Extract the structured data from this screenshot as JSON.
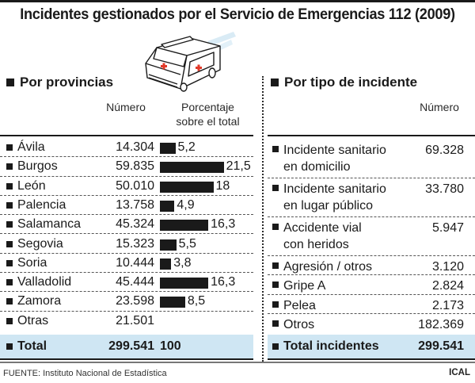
{
  "title": "Incidentes gestionados por el Servicio de Emergencias 112 (2009)",
  "illustration": "ambulance-icon",
  "left": {
    "heading": "Por provincias",
    "col_number": "Número",
    "col_percent_line1": "Porcentaje",
    "col_percent_line2": "sobre el total",
    "rows": [
      {
        "name": "Ávila",
        "number": "14.304",
        "pct": 5.2,
        "pct_label": "5,2"
      },
      {
        "name": "Burgos",
        "number": "59.835",
        "pct": 21.5,
        "pct_label": "21,5"
      },
      {
        "name": "León",
        "number": "50.010",
        "pct": 18,
        "pct_label": "18"
      },
      {
        "name": "Palencia",
        "number": "13.758",
        "pct": 4.9,
        "pct_label": "4,9"
      },
      {
        "name": "Salamanca",
        "number": "45.324",
        "pct": 16.3,
        "pct_label": "16,3"
      },
      {
        "name": "Segovia",
        "number": "15.323",
        "pct": 5.5,
        "pct_label": "5,5"
      },
      {
        "name": "Soria",
        "number": "10.444",
        "pct": 3.8,
        "pct_label": "3,8"
      },
      {
        "name": "Valladolid",
        "number": "45.444",
        "pct": 16.3,
        "pct_label": "16,3"
      },
      {
        "name": "Zamora",
        "number": "23.598",
        "pct": 8.5,
        "pct_label": "8,5"
      },
      {
        "name": "Otras",
        "number": "21.501",
        "pct": null,
        "pct_label": ""
      }
    ],
    "total": {
      "name": "Total",
      "number": "299.541",
      "pct_label": "100"
    }
  },
  "right": {
    "heading": "Por tipo de incidente",
    "col_number": "Número",
    "rows": [
      {
        "line1": "Incidente sanitario",
        "line2": "en domicilio",
        "number": "69.328"
      },
      {
        "line1": "Incidente sanitario",
        "line2": "en lugar público",
        "number": "33.780"
      },
      {
        "line1": "Accidente vial",
        "line2": "con heridos",
        "number": "5.947"
      },
      {
        "line1": "Agresión / otros",
        "line2": "",
        "number": "3.120"
      },
      {
        "line1": "Gripe A",
        "line2": "",
        "number": "2.824"
      },
      {
        "line1": "Pelea",
        "line2": "",
        "number": "2.173"
      },
      {
        "line1": "Otros",
        "line2": "",
        "number": "182.369"
      }
    ],
    "total": {
      "name": "Total incidentes",
      "number": "299.541"
    }
  },
  "footer": {
    "source": "FUENTE: Instituto Nacional de Estadística",
    "credit": "ICAL"
  },
  "colors": {
    "bar": "#1a1a1a",
    "total_bg": "#cfe6f3",
    "cross": "#e23a2a"
  },
  "chart_data": {
    "type": "bar",
    "title": "Incidentes gestionados por el Servicio de Emergencias 112 (2009) — Por provincias",
    "xlabel": "",
    "ylabel": "Porcentaje sobre el total",
    "categories": [
      "Ávila",
      "Burgos",
      "León",
      "Palencia",
      "Salamanca",
      "Segovia",
      "Soria",
      "Valladolid",
      "Zamora",
      "Otras"
    ],
    "series": [
      {
        "name": "Número",
        "values": [
          14304,
          59835,
          50010,
          13758,
          45324,
          15323,
          10444,
          45444,
          23598,
          21501
        ]
      },
      {
        "name": "Porcentaje sobre el total",
        "values": [
          5.2,
          21.5,
          18,
          4.9,
          16.3,
          5.5,
          3.8,
          16.3,
          8.5,
          null
        ]
      }
    ],
    "total": {
      "number": 299541,
      "percent": 100
    },
    "secondary_table": {
      "title": "Por tipo de incidente",
      "categories": [
        "Incidente sanitario en domicilio",
        "Incidente sanitario en lugar público",
        "Accidente vial con heridos",
        "Agresión / otros",
        "Gripe A",
        "Pelea",
        "Otros"
      ],
      "values": [
        69328,
        33780,
        5947,
        3120,
        2824,
        2173,
        182369
      ],
      "total": 299541
    },
    "orientation": "horizontal",
    "grid": false,
    "legend": "none"
  }
}
